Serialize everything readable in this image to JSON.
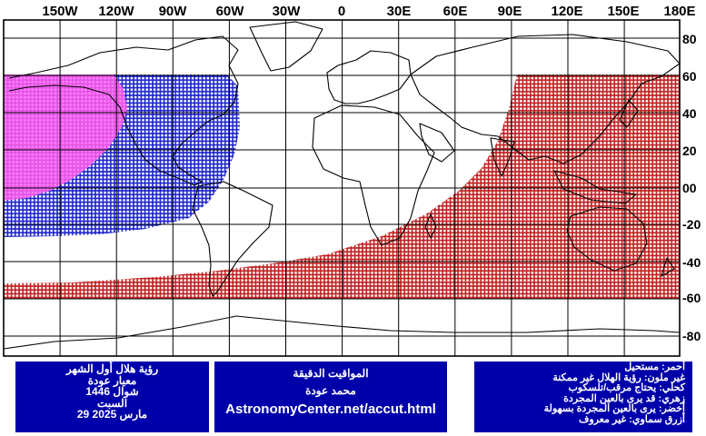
{
  "map": {
    "lon_labels": [
      "150W",
      "120W",
      "90W",
      "60W",
      "30W",
      "0",
      "30E",
      "60E",
      "90E",
      "120E",
      "150E",
      "180E"
    ],
    "lat_labels": [
      "80",
      "60",
      "40",
      "20",
      "00",
      "-20",
      "-40",
      "-60",
      "-80"
    ],
    "colors": {
      "background": "#ffffff",
      "grid": "#000000",
      "magenta": "#ff66ff",
      "blue": "#1a22cc",
      "red": "#c01c1c",
      "coast": "#000000"
    },
    "zones": [
      {
        "name": "magenta",
        "meaning": "يرى بالعين المجردة",
        "lon_west": -180,
        "lat_range": [
          0,
          61
        ]
      },
      {
        "name": "blue",
        "meaning": "يحتاج مرقب/تلسكوب",
        "lat_range": [
          -24,
          61
        ]
      },
      {
        "name": "red",
        "meaning": "مستحيل",
        "lat_range": [
          -59,
          61
        ]
      }
    ]
  },
  "left_panel": {
    "title": "رؤية هلال أول الشهر",
    "criterion": "معيار عودة",
    "month": "شوال 1446",
    "day": "السبت",
    "date": "29 مارس 2025"
  },
  "center_panel": {
    "title": "المواقيت الدقيقة",
    "author": "محمد عودة",
    "url": "AstronomyCenter.net/accut.html"
  },
  "legend": {
    "items": [
      "أحمر: مستحيل",
      "غير ملون: رؤية الهلال غير ممكنة",
      "كحلي: يحتاج مرقب/تلسكوب",
      "زهري: قد يرى بالعين المجردة",
      "أخضر: يرى بالعين المجردة بسهولة",
      "أزرق سماوي: غير معروف"
    ]
  }
}
